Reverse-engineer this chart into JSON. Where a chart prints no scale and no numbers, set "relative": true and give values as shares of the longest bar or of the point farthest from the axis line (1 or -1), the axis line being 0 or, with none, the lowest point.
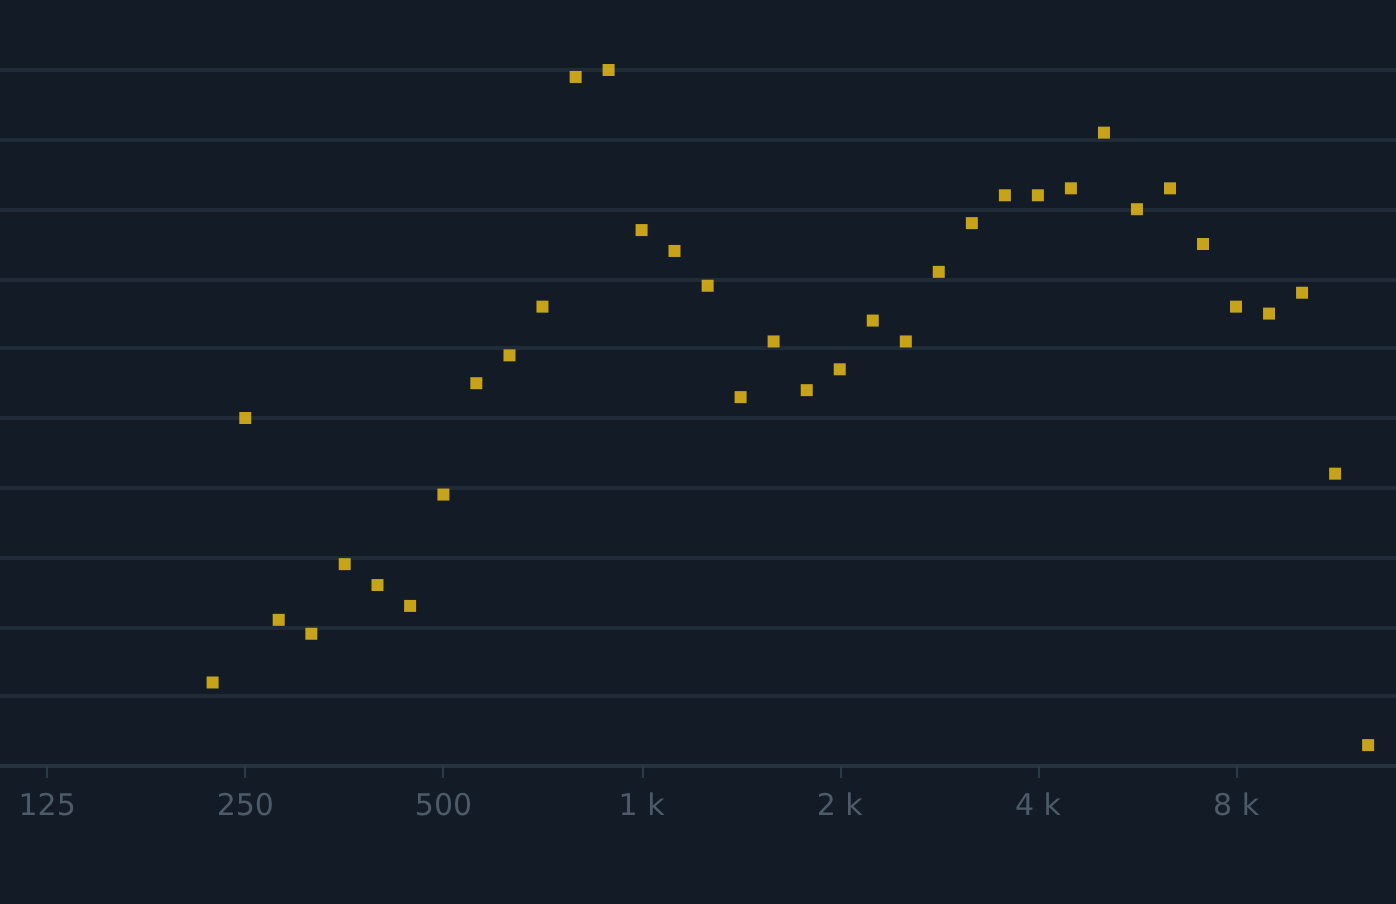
{
  "chart_data": {
    "type": "scatter",
    "relative": true,
    "log": "x",
    "grid": "y",
    "marker": "square",
    "color": "#f5c518",
    "x": [
      223,
      250,
      281,
      315,
      354,
      397,
      445,
      500,
      561,
      630,
      707,
      794,
      891,
      1000,
      1122,
      1260,
      1414,
      1587,
      1782,
      2000,
      2245,
      2520,
      2828,
      3175,
      3564,
      4000,
      4490,
      5040,
      5657,
      6350,
      7127,
      8000,
      8980,
      10079,
      11314,
      12699
    ],
    "values": [
      0.12,
      0.5,
      0.21,
      0.19,
      0.29,
      0.26,
      0.23,
      0.39,
      0.55,
      0.59,
      0.66,
      0.99,
      1,
      0.77,
      0.74,
      0.69,
      0.53,
      0.61,
      0.54,
      0.57,
      0.64,
      0.61,
      0.71,
      0.78,
      0.82,
      0.82,
      0.83,
      0.91,
      0.8,
      0.83,
      0.75,
      0.66,
      0.65,
      0.68,
      0.42,
      0.03
    ],
    "xlim": [
      106,
      14000
    ],
    "xticks": [
      125,
      250,
      500,
      {
        "value": 1000,
        "label": "1 k"
      },
      {
        "value": 2000,
        "label": "2 k"
      },
      {
        "value": 4000,
        "label": "4 k"
      },
      {
        "value": 8000,
        "label": "8 k"
      }
    ]
  }
}
